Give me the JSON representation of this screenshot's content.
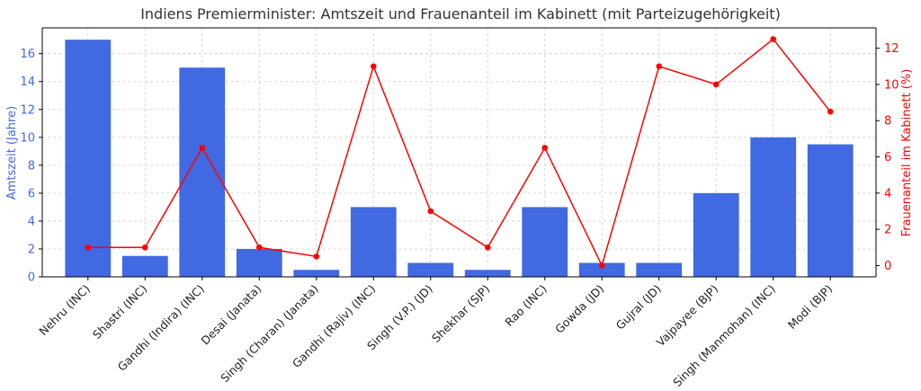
{
  "chart_data": {
    "type": "bar",
    "title": "Indiens Premierminister: Amtszeit und Frauenanteil im Kabinett (mit Parteizugehörigkeit)",
    "ylabel_left": "Amtszeit (Jahre)",
    "ylabel_right": "Frauenanteil im Kabinett (%)",
    "categories": [
      "Nehru (INC)",
      "Shastri (INC)",
      "Gandhi (Indira) (INC)",
      "Desai (Janata)",
      "Singh (Charan) (Janata)",
      "Gandhi (Rajiv) (INC)",
      "Singh (V.P.) (JD)",
      "Shekhar (SJP)",
      "Rao (INC)",
      "Gowda (JD)",
      "Gujral (JD)",
      "Vajpayee (BJP)",
      "Singh (Manmohan) (INC)",
      "Modi (BJP)"
    ],
    "series": [
      {
        "name": "Amtszeit (Jahre)",
        "type": "bar",
        "axis": "left",
        "color": "#4169e1",
        "values": [
          17,
          1.5,
          15,
          2,
          0.5,
          5,
          1,
          0.5,
          5,
          1,
          1,
          6,
          10,
          9.5
        ]
      },
      {
        "name": "Frauenanteil im Kabinett (%)",
        "type": "line",
        "axis": "right",
        "color": "#ff0000",
        "values": [
          1,
          1,
          6.5,
          1,
          0.5,
          11,
          3,
          1,
          6.5,
          0,
          11,
          10,
          12.5,
          8.5
        ]
      }
    ],
    "ylim_left": [
      0,
      17.85
    ],
    "yticks_left": [
      "0",
      "2",
      "4",
      "6",
      "8",
      "10",
      "12",
      "14",
      "16"
    ],
    "ylim_right": [
      -0.625,
      13.125
    ],
    "yticks_right": [
      "0",
      "2",
      "4",
      "6",
      "8",
      "10",
      "12"
    ],
    "grid": true
  }
}
